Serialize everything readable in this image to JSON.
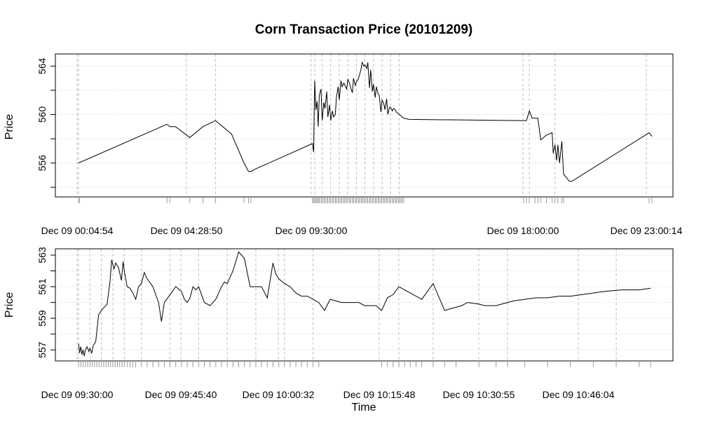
{
  "title": "Corn Transaction Price (20101209)",
  "chart_data": [
    {
      "type": "line",
      "panel": "top",
      "xlabel": "",
      "ylabel": "Price",
      "ylim": [
        553.2,
        565.0
      ],
      "yticks": [
        556,
        560,
        564
      ],
      "yticks_minor": [
        554,
        558,
        562
      ],
      "xticks": [
        "Dec 09 00:04:54",
        "Dec 09 04:28:50",
        "Dec 09 09:30:00",
        "Dec 09 18:00:00",
        "Dec 09 23:00:14"
      ],
      "grid": true,
      "series": [
        {
          "x": [
            0,
            0.155,
            0.16,
            0.17,
            0.195,
            0.218,
            0.24,
            0.268,
            0.29,
            0.298,
            0.3,
            0.302,
            0.31,
            0.41,
            0.412,
            0.413,
            0.414,
            0.416,
            0.418,
            0.42,
            0.422,
            0.425,
            0.427,
            0.43,
            0.432,
            0.435,
            0.437,
            0.44,
            0.442,
            0.445,
            0.447,
            0.45,
            0.452,
            0.455,
            0.457,
            0.46,
            0.462,
            0.465,
            0.467,
            0.47,
            0.472,
            0.475,
            0.477,
            0.48,
            0.482,
            0.485,
            0.487,
            0.49,
            0.492,
            0.495,
            0.497,
            0.5,
            0.502,
            0.505,
            0.507,
            0.51,
            0.512,
            0.515,
            0.517,
            0.52,
            0.522,
            0.525,
            0.527,
            0.53,
            0.532,
            0.535,
            0.537,
            0.54,
            0.542,
            0.545,
            0.547,
            0.55,
            0.552,
            0.555,
            0.557,
            0.56,
            0.562,
            0.565,
            0.567,
            0.57,
            0.58,
            0.78,
            0.785,
            0.79,
            0.795,
            0.8,
            0.805,
            0.81,
            0.82,
            0.83,
            0.832,
            0.835,
            0.838,
            0.84,
            0.843,
            0.847,
            0.85,
            0.86,
            0.865,
            1.0,
            1.005
          ],
          "y": [
            556.0,
            559.2,
            559.0,
            559.0,
            558.1,
            559.0,
            559.5,
            558.4,
            556.0,
            555.3,
            555.3,
            555.3,
            555.5,
            557.6,
            556.9,
            560.3,
            562.8,
            560.4,
            561.1,
            559.0,
            561.6,
            562.1,
            559.5,
            561.0,
            560.5,
            561.9,
            559.8,
            560.8,
            559.5,
            560.3,
            559.8,
            560.0,
            561.4,
            562.3,
            561.2,
            562.8,
            562.3,
            562.6,
            562.4,
            562.1,
            562.9,
            562.6,
            562.2,
            561.8,
            563.0,
            562.4,
            562.7,
            562.9,
            563.2,
            563.7,
            564.3,
            564.0,
            564.1,
            563.8,
            564.3,
            562.2,
            563.7,
            561.9,
            562.5,
            561.4,
            562.3,
            561.7,
            561.6,
            560.2,
            561.2,
            560.9,
            560.4,
            561.3,
            560.0,
            560.6,
            560.6,
            560.3,
            560.5,
            560.4,
            560.2,
            560.1,
            560.0,
            559.9,
            559.8,
            559.7,
            559.6,
            559.5,
            559.5,
            560.3,
            559.7,
            559.7,
            559.7,
            557.9,
            558.3,
            558.5,
            556.8,
            557.5,
            556.2,
            557.5,
            556.0,
            557.8,
            555.1,
            554.5,
            554.5,
            558.5,
            558.2
          ]
        }
      ],
      "rug": [
        0,
        0.002,
        0.155,
        0.16,
        0.195,
        0.218,
        0.24,
        0.29,
        0.298,
        0.302,
        0.41,
        0.412,
        0.414,
        0.416,
        0.418,
        0.42,
        0.422,
        0.425,
        0.427,
        0.43,
        0.432,
        0.435,
        0.437,
        0.44,
        0.442,
        0.445,
        0.447,
        0.45,
        0.452,
        0.455,
        0.457,
        0.46,
        0.462,
        0.465,
        0.467,
        0.47,
        0.472,
        0.475,
        0.477,
        0.48,
        0.482,
        0.485,
        0.487,
        0.49,
        0.492,
        0.495,
        0.497,
        0.5,
        0.502,
        0.505,
        0.507,
        0.51,
        0.512,
        0.515,
        0.517,
        0.52,
        0.522,
        0.525,
        0.527,
        0.53,
        0.532,
        0.535,
        0.537,
        0.54,
        0.542,
        0.545,
        0.547,
        0.55,
        0.552,
        0.555,
        0.557,
        0.56,
        0.562,
        0.565,
        0.567,
        0.57,
        0.78,
        0.785,
        0.79,
        0.8,
        0.805,
        0.81,
        0.82,
        0.83,
        0.835,
        0.84,
        0.847,
        0.85,
        1.0,
        1.005
      ]
    },
    {
      "type": "line",
      "panel": "bottom",
      "xlabel": "Time",
      "ylabel": "Price",
      "ylim": [
        556.3,
        563.4
      ],
      "yticks": [
        557,
        559,
        561,
        563
      ],
      "yticks_minor": [
        558,
        560,
        562
      ],
      "xticks": [
        "Dec 09 09:30:00",
        "Dec 09 09:45:40",
        "Dec 09 10:00:32",
        "Dec 09 10:15:48",
        "Dec 09 10:30:55",
        "Dec 09 10:46:04"
      ],
      "grid": true,
      "series": [
        {
          "x": [
            0,
            0.002,
            0.004,
            0.006,
            0.008,
            0.01,
            0.012,
            0.015,
            0.018,
            0.02,
            0.023,
            0.026,
            0.03,
            0.035,
            0.04,
            0.045,
            0.05,
            0.055,
            0.058,
            0.062,
            0.065,
            0.07,
            0.075,
            0.078,
            0.08,
            0.085,
            0.09,
            0.095,
            0.1,
            0.105,
            0.11,
            0.115,
            0.12,
            0.13,
            0.14,
            0.145,
            0.15,
            0.16,
            0.17,
            0.18,
            0.185,
            0.19,
            0.195,
            0.2,
            0.205,
            0.21,
            0.22,
            0.23,
            0.24,
            0.25,
            0.255,
            0.26,
            0.27,
            0.28,
            0.29,
            0.3,
            0.31,
            0.315,
            0.32,
            0.33,
            0.34,
            0.345,
            0.35,
            0.36,
            0.37,
            0.375,
            0.38,
            0.39,
            0.4,
            0.42,
            0.43,
            0.44,
            0.45,
            0.46,
            0.47,
            0.48,
            0.49,
            0.5,
            0.52,
            0.53,
            0.54,
            0.55,
            0.56,
            0.57,
            0.58,
            0.59,
            0.6,
            0.62,
            0.64,
            0.66,
            0.67,
            0.68,
            0.7,
            0.71,
            0.72,
            0.73,
            0.74,
            0.75,
            0.76,
            0.78,
            0.8,
            0.82,
            0.84,
            0.86,
            0.88,
            0.9,
            0.92,
            0.95,
            0.98,
            1.0
          ],
          "y": [
            557.4,
            556.8,
            557.2,
            556.7,
            557.0,
            556.6,
            557.0,
            557.2,
            556.9,
            557.1,
            556.8,
            557.3,
            557.5,
            559.2,
            559.5,
            559.7,
            559.9,
            561.3,
            562.7,
            562.1,
            562.5,
            562.2,
            561.4,
            562.6,
            562.0,
            561.0,
            560.9,
            560.6,
            560.2,
            561.0,
            561.2,
            561.9,
            561.5,
            561.0,
            560.0,
            558.8,
            560.0,
            560.5,
            561.0,
            560.7,
            560.2,
            560.0,
            560.3,
            561.0,
            560.8,
            561.0,
            560.0,
            559.8,
            560.2,
            561.0,
            561.3,
            561.2,
            562.0,
            563.2,
            562.8,
            561.0,
            561.0,
            561.0,
            561.0,
            560.3,
            562.5,
            561.8,
            561.5,
            561.2,
            561.0,
            560.8,
            560.6,
            560.4,
            560.4,
            560.0,
            559.5,
            560.2,
            560.1,
            560.0,
            560.0,
            560.0,
            560.0,
            559.8,
            559.8,
            559.5,
            560.3,
            560.5,
            561.0,
            560.8,
            560.6,
            560.4,
            560.2,
            561.2,
            559.5,
            559.7,
            559.8,
            560.0,
            559.9,
            559.8,
            559.8,
            559.8,
            559.9,
            560.0,
            560.1,
            560.2,
            560.3,
            560.3,
            560.4,
            560.4,
            560.5,
            560.6,
            560.7,
            560.8,
            560.8,
            560.9
          ]
        }
      ],
      "rug": [
        0,
        0.004,
        0.008,
        0.012,
        0.016,
        0.02,
        0.024,
        0.028,
        0.032,
        0.036,
        0.04,
        0.044,
        0.048,
        0.052,
        0.056,
        0.06,
        0.064,
        0.068,
        0.072,
        0.076,
        0.08,
        0.085,
        0.09,
        0.095,
        0.1,
        0.11,
        0.12,
        0.13,
        0.14,
        0.15,
        0.16,
        0.17,
        0.18,
        0.19,
        0.2,
        0.21,
        0.22,
        0.23,
        0.24,
        0.25,
        0.26,
        0.27,
        0.28,
        0.29,
        0.3,
        0.31,
        0.32,
        0.33,
        0.34,
        0.35,
        0.36,
        0.37,
        0.38,
        0.39,
        0.4,
        0.41,
        0.42,
        0.53,
        0.54,
        0.55,
        0.56,
        0.57,
        0.58,
        0.59,
        0.6,
        0.62,
        0.64,
        0.66,
        0.7,
        0.73,
        0.75,
        0.78,
        0.82,
        0.86,
        0.9,
        0.94,
        0.98,
        1.0
      ]
    }
  ]
}
